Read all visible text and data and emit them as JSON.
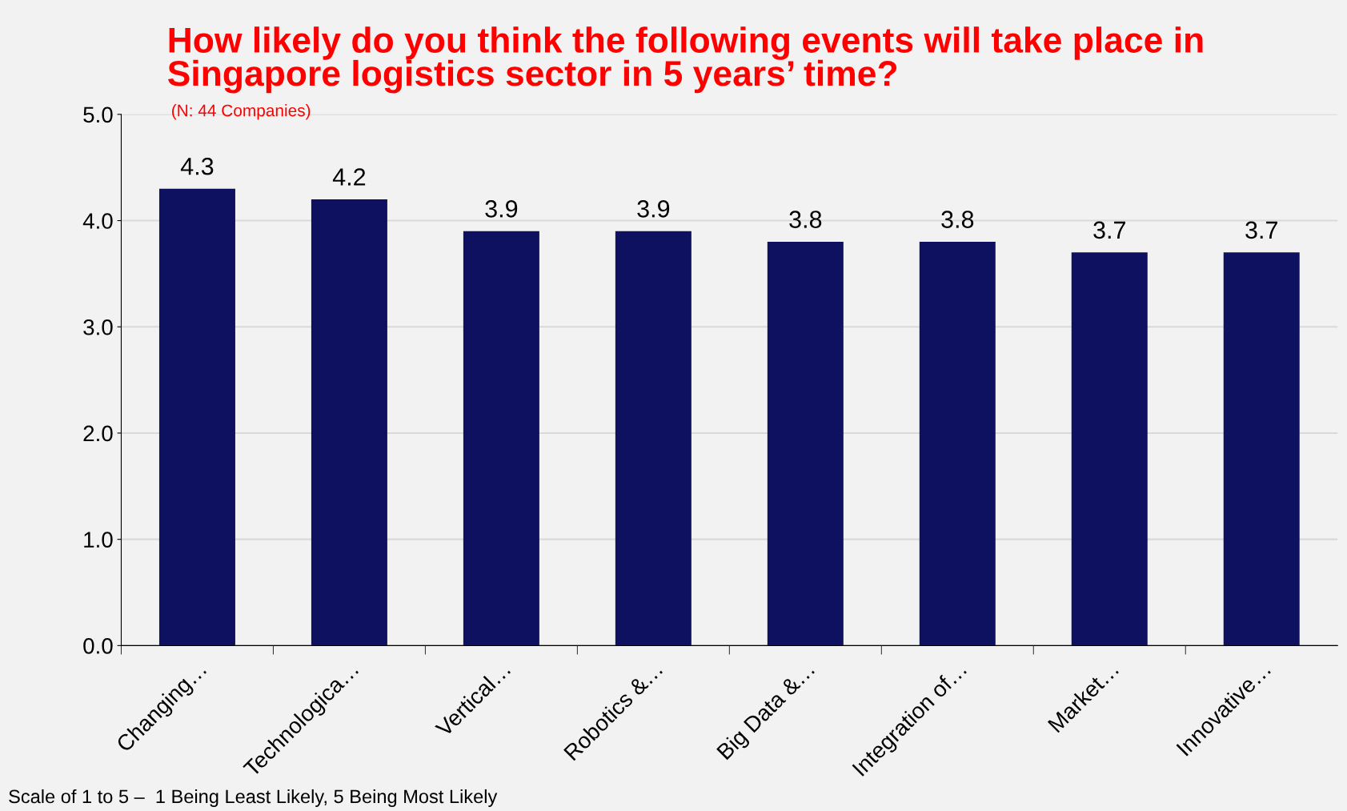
{
  "chart_data": {
    "type": "bar",
    "title": "How likely do you think the following events will take place in\nSingapore logistics sector in 5 years’ time?",
    "subtitle": "(N: 44 Companies)",
    "categories": [
      "Changing…",
      "Technologica…",
      "Vertical…",
      "Robotics &…",
      "Big Data &…",
      "Integration of…",
      "Market…",
      "Innovative…"
    ],
    "values": [
      4.3,
      4.2,
      3.9,
      3.9,
      3.8,
      3.8,
      3.7,
      3.7
    ],
    "color": "#0d1160",
    "ylim": [
      0,
      5
    ],
    "yticks": [
      {
        "value": 0,
        "label": "0.0"
      },
      {
        "value": 1,
        "label": "1.0"
      },
      {
        "value": 2,
        "label": "2.0"
      },
      {
        "value": 3,
        "label": "3.0"
      },
      {
        "value": 4,
        "label": "4.0"
      },
      {
        "value": 5,
        "label": "5.0"
      }
    ],
    "grid": "y",
    "data_labels": true,
    "legend": false,
    "annotations": [
      "Scale of 1 to 5 –  1 Being Least Likely, 5 Being Most Likely"
    ]
  }
}
